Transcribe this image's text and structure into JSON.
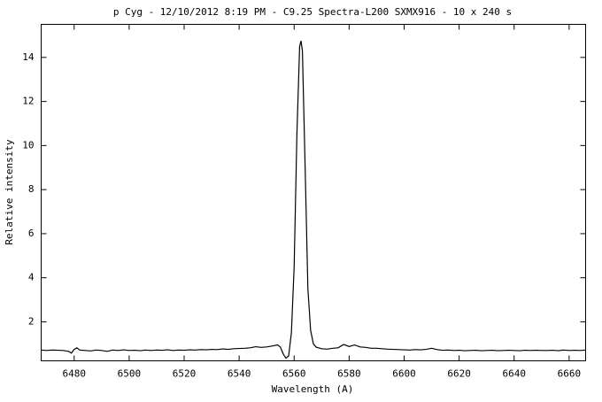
{
  "chart_data": {
    "type": "line",
    "title": "p Cyg - 12/10/2012 8:19 PM - C9.25 Spectra-L200 SXMX916 - 10 x 240 s",
    "xlabel": "Wavelength (A)",
    "ylabel": "Relative intensity",
    "color": "#000000",
    "x": [
      6468,
      6470,
      6472,
      6474,
      6476,
      6478,
      6479,
      6480,
      6481,
      6482,
      6484,
      6486,
      6488,
      6490,
      6492,
      6494,
      6496,
      6498,
      6500,
      6502,
      6504,
      6506,
      6508,
      6510,
      6512,
      6514,
      6516,
      6518,
      6520,
      6522,
      6524,
      6526,
      6528,
      6530,
      6532,
      6534,
      6536,
      6538,
      6540,
      6542,
      6544,
      6546,
      6548,
      6550,
      6552,
      6554,
      6555,
      6556,
      6557,
      6558,
      6559,
      6560,
      6561,
      6562,
      6562.5,
      6563,
      6564,
      6565,
      6566,
      6567,
      6568,
      6570,
      6572,
      6574,
      6576,
      6578,
      6580,
      6582,
      6584,
      6586,
      6588,
      6590,
      6592,
      6594,
      6596,
      6598,
      6600,
      6602,
      6604,
      6606,
      6608,
      6610,
      6612,
      6614,
      6616,
      6618,
      6620,
      6622,
      6624,
      6626,
      6628,
      6630,
      6632,
      6634,
      6636,
      6638,
      6640,
      6642,
      6644,
      6646,
      6648,
      6650,
      6652,
      6654,
      6656,
      6658,
      6660,
      6662,
      6664,
      6666
    ],
    "values": [
      0.72,
      0.7,
      0.72,
      0.71,
      0.7,
      0.66,
      0.58,
      0.75,
      0.82,
      0.72,
      0.7,
      0.68,
      0.72,
      0.7,
      0.66,
      0.72,
      0.7,
      0.73,
      0.7,
      0.71,
      0.69,
      0.72,
      0.7,
      0.72,
      0.71,
      0.73,
      0.7,
      0.72,
      0.71,
      0.73,
      0.72,
      0.74,
      0.73,
      0.75,
      0.74,
      0.77,
      0.75,
      0.78,
      0.79,
      0.8,
      0.82,
      0.87,
      0.84,
      0.86,
      0.9,
      0.95,
      0.85,
      0.55,
      0.35,
      0.45,
      1.5,
      4.5,
      10.5,
      14.5,
      14.75,
      14.3,
      9.0,
      3.5,
      1.6,
      1.0,
      0.85,
      0.78,
      0.76,
      0.8,
      0.82,
      0.97,
      0.88,
      0.95,
      0.86,
      0.84,
      0.8,
      0.8,
      0.78,
      0.76,
      0.75,
      0.74,
      0.73,
      0.72,
      0.74,
      0.73,
      0.75,
      0.8,
      0.74,
      0.71,
      0.72,
      0.7,
      0.71,
      0.69,
      0.7,
      0.71,
      0.69,
      0.7,
      0.71,
      0.69,
      0.7,
      0.71,
      0.7,
      0.69,
      0.71,
      0.7,
      0.71,
      0.7,
      0.7,
      0.71,
      0.69,
      0.72,
      0.7,
      0.71,
      0.7,
      0.72
    ],
    "xlim": [
      6468,
      6666
    ],
    "ylim": [
      0.23,
      15.5
    ],
    "xticks": [
      6480,
      6500,
      6520,
      6540,
      6560,
      6580,
      6600,
      6620,
      6640,
      6660
    ],
    "yticks": [
      2,
      4,
      6,
      8,
      10,
      12,
      14
    ]
  }
}
